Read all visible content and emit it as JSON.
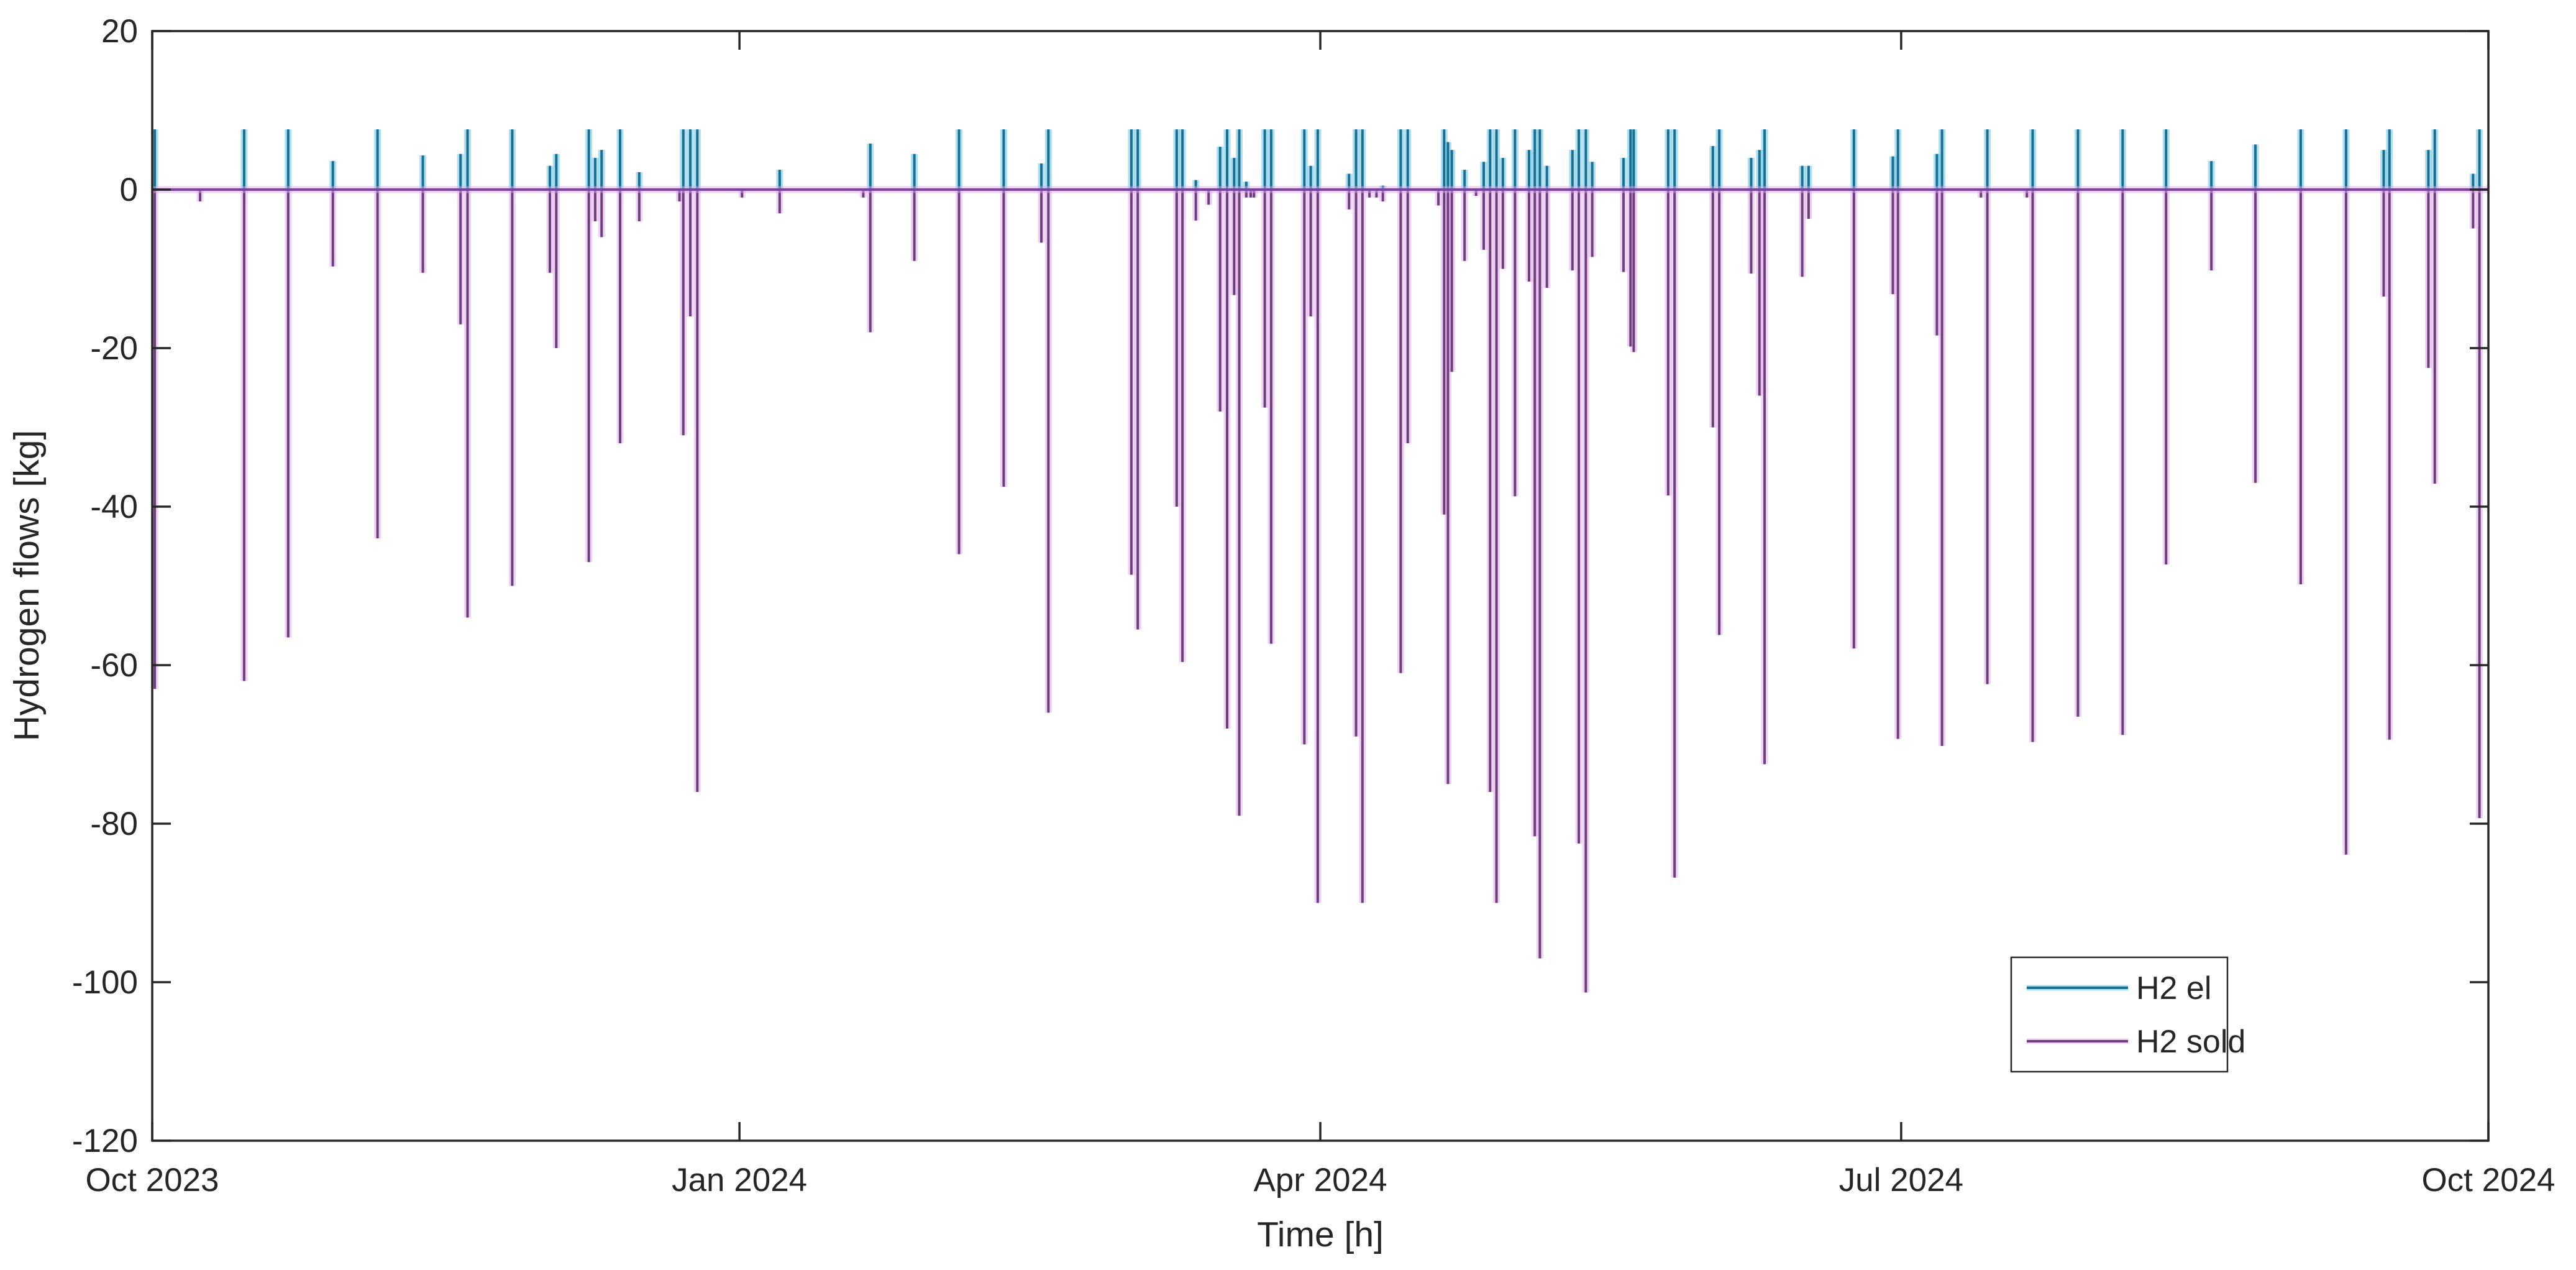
{
  "chart_data": {
    "type": "line",
    "title": "",
    "xlabel": "Time [h]",
    "ylabel": "Hydrogen flows [kg]",
    "ylim": [
      -120,
      20
    ],
    "xlim_days": [
      0,
      366
    ],
    "grid": false,
    "legend_position": "lower-right",
    "y_ticks": [
      {
        "v": 20,
        "label": "20"
      },
      {
        "v": 0,
        "label": "0"
      },
      {
        "v": -20,
        "label": "-20"
      },
      {
        "v": -40,
        "label": "-40"
      },
      {
        "v": -60,
        "label": "-60"
      },
      {
        "v": -80,
        "label": "-80"
      },
      {
        "v": -100,
        "label": "-100"
      },
      {
        "v": -120,
        "label": "-120"
      }
    ],
    "x_ticks": [
      {
        "day": 0,
        "label": "Oct 2023"
      },
      {
        "day": 92,
        "label": "Jan 2024"
      },
      {
        "day": 183,
        "label": "Apr 2024"
      },
      {
        "day": 274,
        "label": "Jul 2024"
      },
      {
        "day": 366,
        "label": "Oct 2024"
      }
    ],
    "colors": {
      "el": "#176f93",
      "el_halo": "rgba(105,196,226,0.55)",
      "sold": "#6e3f7f",
      "sold_halo": "rgba(222,165,227,0.5)",
      "zero_line": "#7a42a4",
      "axis": "#262626",
      "text": "#262626"
    },
    "legend": [
      {
        "label": "H2 el"
      },
      {
        "label": "H2 sold"
      }
    ],
    "series": [
      {
        "name": "H2 el",
        "points": [
          [
            0.4,
            7.6
          ],
          [
            14.4,
            7.6
          ],
          [
            21.3,
            7.6
          ],
          [
            28.3,
            3.6
          ],
          [
            35.3,
            7.6
          ],
          [
            42.4,
            4.3
          ],
          [
            48.3,
            4.5
          ],
          [
            49.4,
            7.6
          ],
          [
            56.4,
            7.6
          ],
          [
            62.3,
            3
          ],
          [
            63.3,
            4.5
          ],
          [
            68.4,
            7.6
          ],
          [
            69.4,
            4
          ],
          [
            70.4,
            5
          ],
          [
            73.3,
            7.6
          ],
          [
            76.3,
            2.2
          ],
          [
            83.2,
            7.6
          ],
          [
            84.3,
            7.6
          ],
          [
            85.4,
            7.6
          ],
          [
            98.3,
            2.5
          ],
          [
            112.5,
            5.8
          ],
          [
            119.4,
            4.5
          ],
          [
            126.4,
            7.6
          ],
          [
            133.4,
            7.6
          ],
          [
            139.3,
            3.3
          ],
          [
            140.4,
            7.6
          ],
          [
            153.4,
            7.6
          ],
          [
            154.4,
            7.6
          ],
          [
            160.5,
            7.6
          ],
          [
            161.4,
            7.6
          ],
          [
            163.5,
            1.2
          ],
          [
            167.3,
            5.4
          ],
          [
            168.4,
            7.6
          ],
          [
            169.5,
            4
          ],
          [
            170.3,
            7.6
          ],
          [
            171.4,
            1
          ],
          [
            174.3,
            7.6
          ],
          [
            175.3,
            7.6
          ],
          [
            180.5,
            7.6
          ],
          [
            181.5,
            3
          ],
          [
            182.6,
            7.6
          ],
          [
            187.5,
            2
          ],
          [
            188.6,
            7.6
          ],
          [
            189.6,
            7.6
          ],
          [
            192.8,
            0.5
          ],
          [
            195.6,
            7.6
          ],
          [
            196.7,
            7.6
          ],
          [
            202.4,
            7.6
          ],
          [
            203,
            6
          ],
          [
            203.6,
            5
          ],
          [
            205.6,
            2.5
          ],
          [
            208.6,
            3.5
          ],
          [
            209.6,
            7.6
          ],
          [
            210.6,
            7.6
          ],
          [
            211.6,
            4
          ],
          [
            213.5,
            7.6
          ],
          [
            215.7,
            5
          ],
          [
            216.6,
            7.6
          ],
          [
            217.4,
            7.6
          ],
          [
            218.5,
            3
          ],
          [
            222.5,
            5
          ],
          [
            223.5,
            7.6
          ],
          [
            224.6,
            7.6
          ],
          [
            225.6,
            3.5
          ],
          [
            230.5,
            4
          ],
          [
            231.6,
            7.6
          ],
          [
            232.1,
            7.6
          ],
          [
            237.5,
            7.6
          ],
          [
            238.5,
            7.6
          ],
          [
            244.5,
            5.5
          ],
          [
            245.5,
            7.6
          ],
          [
            250.5,
            4
          ],
          [
            251.8,
            5
          ],
          [
            252.6,
            7.6
          ],
          [
            258.5,
            3
          ],
          [
            259.5,
            3
          ],
          [
            266.6,
            7.6
          ],
          [
            272.7,
            4.2
          ],
          [
            273.5,
            7.6
          ],
          [
            279.6,
            4.5
          ],
          [
            280.4,
            7.6
          ],
          [
            287.5,
            7.6
          ],
          [
            294.6,
            7.6
          ],
          [
            301.7,
            7.6
          ],
          [
            308.7,
            7.6
          ],
          [
            315.5,
            7.6
          ],
          [
            322.6,
            3.6
          ],
          [
            329.5,
            5.7
          ],
          [
            336.6,
            7.6
          ],
          [
            343.7,
            7.6
          ],
          [
            349.6,
            5
          ],
          [
            350.5,
            7.6
          ],
          [
            356.6,
            5
          ],
          [
            357.6,
            7.6
          ],
          [
            363.6,
            2
          ],
          [
            364.6,
            7.6
          ]
        ]
      },
      {
        "name": "H2 sold",
        "points": [
          [
            0.4,
            -63
          ],
          [
            7.5,
            -1.5
          ],
          [
            14.4,
            -62
          ],
          [
            21.3,
            -56.5
          ],
          [
            28.3,
            -9.7
          ],
          [
            35.3,
            -44
          ],
          [
            42.4,
            -10.5
          ],
          [
            48.3,
            -17
          ],
          [
            49.4,
            -54
          ],
          [
            56.4,
            -50
          ],
          [
            62.3,
            -10.5
          ],
          [
            63.3,
            -20
          ],
          [
            68.4,
            -47
          ],
          [
            69.4,
            -4
          ],
          [
            70.4,
            -6
          ],
          [
            73.3,
            -32
          ],
          [
            76.3,
            -4
          ],
          [
            82.6,
            -1.5
          ],
          [
            83.2,
            -31
          ],
          [
            84.3,
            -16
          ],
          [
            85.4,
            -76
          ],
          [
            92.4,
            -1
          ],
          [
            98.3,
            -3
          ],
          [
            111.4,
            -1
          ],
          [
            112.5,
            -18
          ],
          [
            119.4,
            -9
          ],
          [
            126.4,
            -46
          ],
          [
            133.4,
            -37.5
          ],
          [
            139.3,
            -6.7
          ],
          [
            140.4,
            -66
          ],
          [
            153.4,
            -48.6
          ],
          [
            154.4,
            -55.5
          ],
          [
            160.5,
            -40
          ],
          [
            161.4,
            -59.6
          ],
          [
            163.5,
            -3.9
          ],
          [
            165.5,
            -1.9
          ],
          [
            167.3,
            -28
          ],
          [
            168.4,
            -68
          ],
          [
            169.5,
            -13.3
          ],
          [
            170.3,
            -79
          ],
          [
            171.4,
            -1
          ],
          [
            172.1,
            -1
          ],
          [
            172.6,
            -1
          ],
          [
            174.3,
            -27.5
          ],
          [
            175.3,
            -57.3
          ],
          [
            180.5,
            -70
          ],
          [
            181.5,
            -16
          ],
          [
            182.6,
            -90
          ],
          [
            187.5,
            -2.5
          ],
          [
            188.6,
            -69
          ],
          [
            189.6,
            -90
          ],
          [
            190.7,
            -1
          ],
          [
            191.8,
            -1
          ],
          [
            192.8,
            -1.5
          ],
          [
            195.6,
            -61
          ],
          [
            196.7,
            -32
          ],
          [
            201.5,
            -2
          ],
          [
            202.4,
            -41
          ],
          [
            203,
            -75
          ],
          [
            203.6,
            -23
          ],
          [
            205.6,
            -9
          ],
          [
            207.4,
            -0.8
          ],
          [
            208.6,
            -7.6
          ],
          [
            209.6,
            -76
          ],
          [
            210.6,
            -90
          ],
          [
            211.6,
            -10
          ],
          [
            213.5,
            -38.7
          ],
          [
            215.7,
            -11.6
          ],
          [
            216.6,
            -81.6
          ],
          [
            217.4,
            -97
          ],
          [
            218.5,
            -12.4
          ],
          [
            222.5,
            -10.2
          ],
          [
            223.5,
            -82.5
          ],
          [
            224.6,
            -101.3
          ],
          [
            225.6,
            -8.5
          ],
          [
            230.5,
            -10.4
          ],
          [
            231.6,
            -19.8
          ],
          [
            232.1,
            -20.5
          ],
          [
            237.5,
            -38.6
          ],
          [
            238.5,
            -86.8
          ],
          [
            244.5,
            -30
          ],
          [
            245.5,
            -56.2
          ],
          [
            250.5,
            -10.6
          ],
          [
            251.8,
            -26
          ],
          [
            252.6,
            -72.5
          ],
          [
            258.5,
            -11
          ],
          [
            259.5,
            -3.7
          ],
          [
            266.6,
            -57.9
          ],
          [
            272.7,
            -13.2
          ],
          [
            273.5,
            -69.3
          ],
          [
            279.6,
            -18.4
          ],
          [
            280.4,
            -70.2
          ],
          [
            286.5,
            -1
          ],
          [
            287.5,
            -62.4
          ],
          [
            293.7,
            -1
          ],
          [
            294.6,
            -69.7
          ],
          [
            301.7,
            -66.5
          ],
          [
            308.7,
            -68.8
          ],
          [
            315.5,
            -47.3
          ],
          [
            322.6,
            -10.2
          ],
          [
            329.5,
            -37
          ],
          [
            336.6,
            -49.8
          ],
          [
            343.7,
            -83.9
          ],
          [
            349.6,
            -13.5
          ],
          [
            350.5,
            -69.4
          ],
          [
            356.6,
            -22.5
          ],
          [
            357.6,
            -37.1
          ],
          [
            363.6,
            -4.9
          ],
          [
            364.6,
            -79.3
          ]
        ]
      }
    ]
  }
}
